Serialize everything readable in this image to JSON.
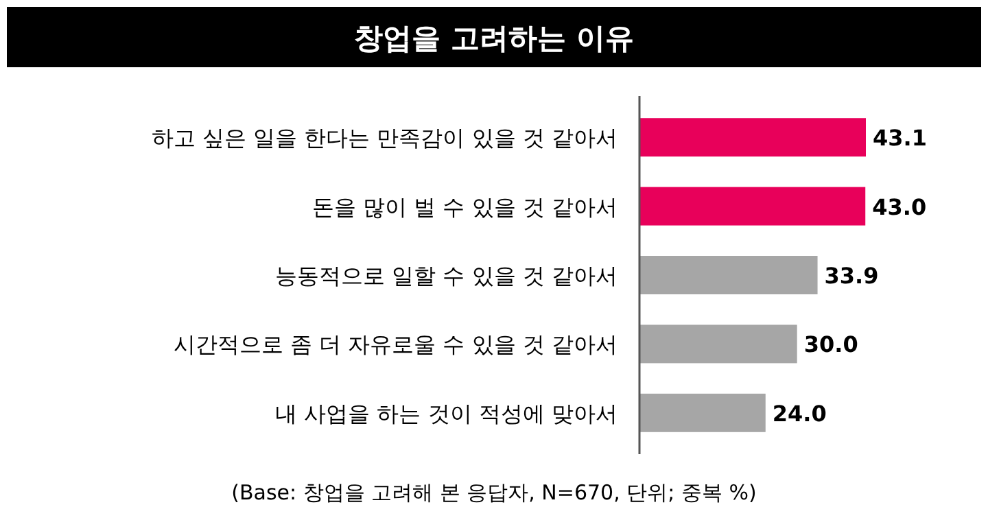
{
  "chart_data": {
    "type": "bar",
    "orientation": "horizontal",
    "title": "창업을 고려하는 이유",
    "categories": [
      "하고 싶은 일을 한다는 만족감이 있을 것 같아서",
      "돈을 많이 벌 수 있을 것 같아서",
      "능동적으로 일할 수 있을 것 같아서",
      "시간적으로 좀 더 자유로울 수 있을 것 같아서",
      "내 사업을 하는 것이 적성에 맞아서"
    ],
    "values": [
      43.1,
      43.0,
      33.9,
      30.0,
      24.0
    ],
    "colors": [
      "#e8005a",
      "#e8005a",
      "#a6a6a6",
      "#a6a6a6",
      "#a6a6a6"
    ],
    "value_labels": [
      "43.1",
      "43.0",
      "33.9",
      "30.0",
      "24.0"
    ],
    "annotations": [
      "(Base: 창업을 고려해 본 응답자, N=670, 단위; 중복 %)"
    ]
  }
}
